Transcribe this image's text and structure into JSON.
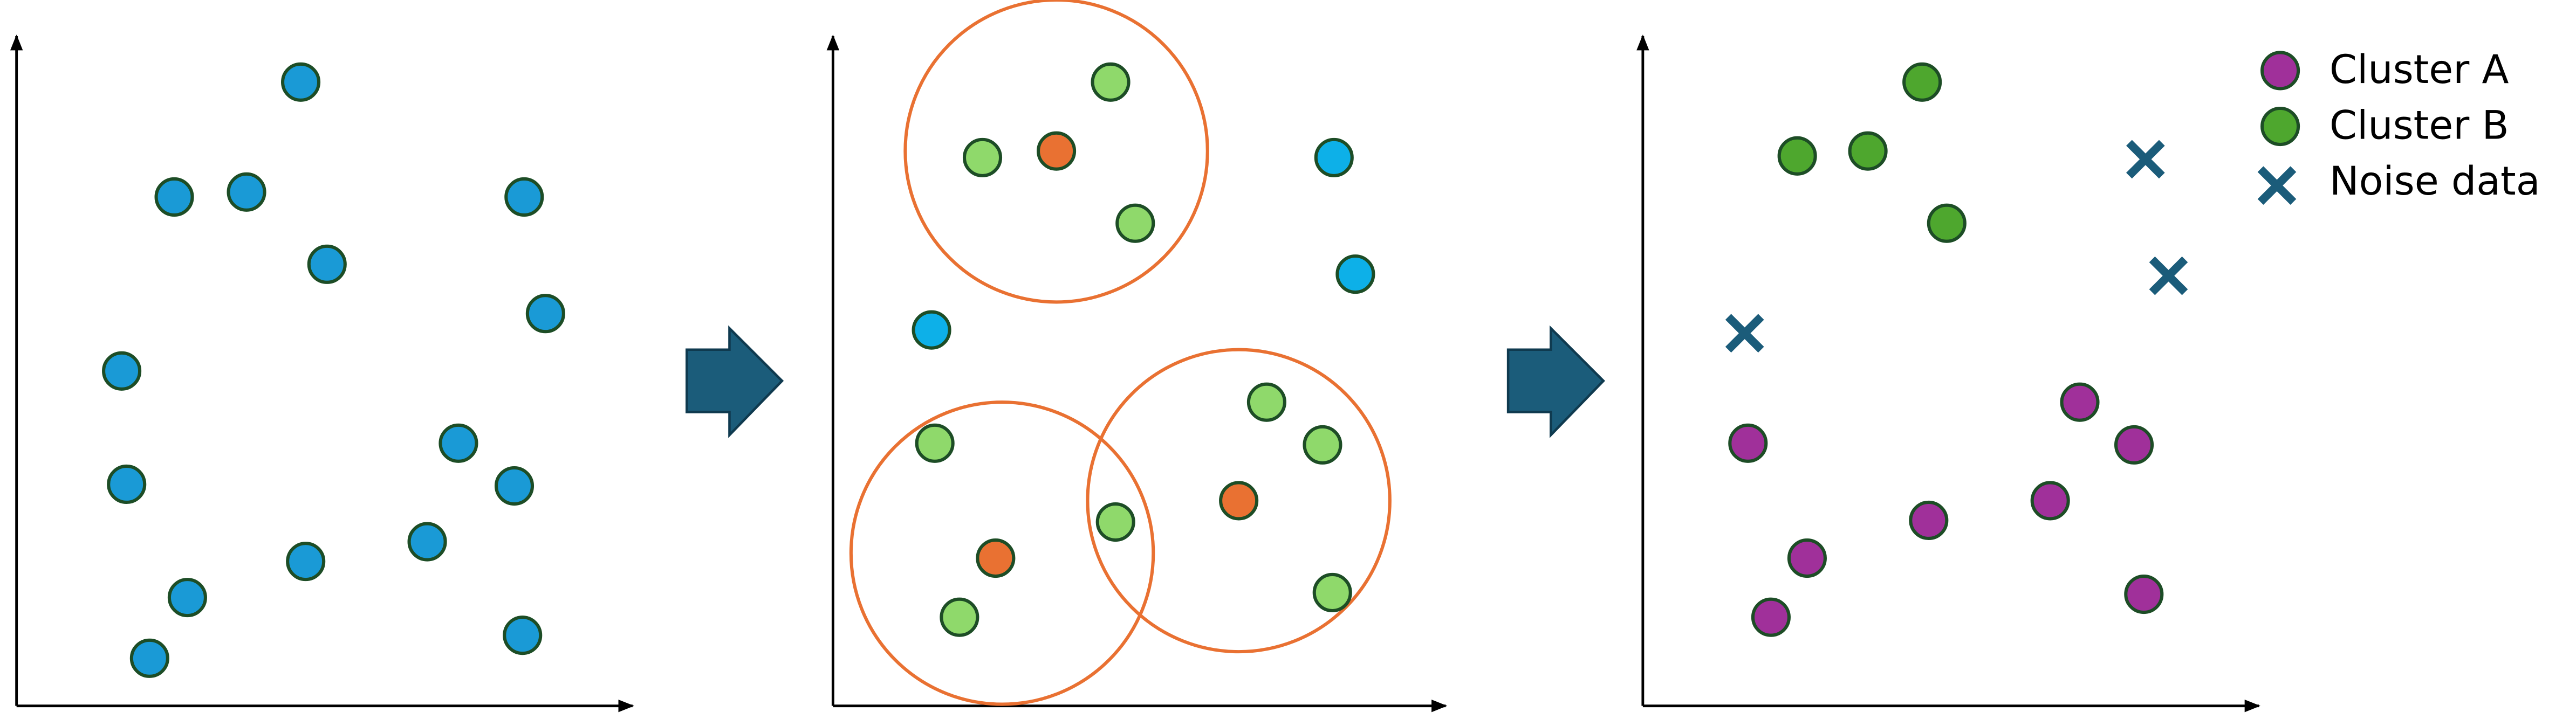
{
  "legend": {
    "items": [
      {
        "label": "Cluster A"
      },
      {
        "label": "Cluster B"
      },
      {
        "label": "Noise data"
      }
    ]
  }
}
